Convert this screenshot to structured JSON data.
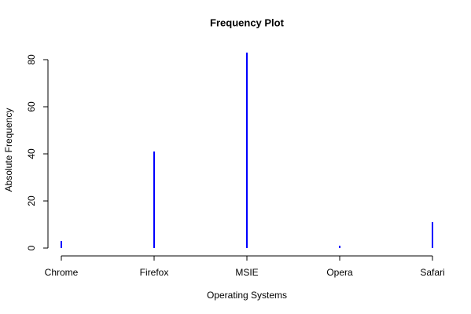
{
  "chart_data": {
    "type": "bar",
    "title": "Frequency Plot",
    "x_label": "Operating Systems",
    "y_label": "Absolute Frequency",
    "categories": [
      "Chrome",
      "Firefox",
      "MSIE",
      "Opera",
      "Safari"
    ],
    "values": [
      3,
      41,
      83,
      1,
      11
    ],
    "color": "#0000ff",
    "ylim": [
      -3.32,
      86.32
    ],
    "yticks": [
      0,
      20,
      40,
      60,
      80
    ],
    "grid": false
  }
}
